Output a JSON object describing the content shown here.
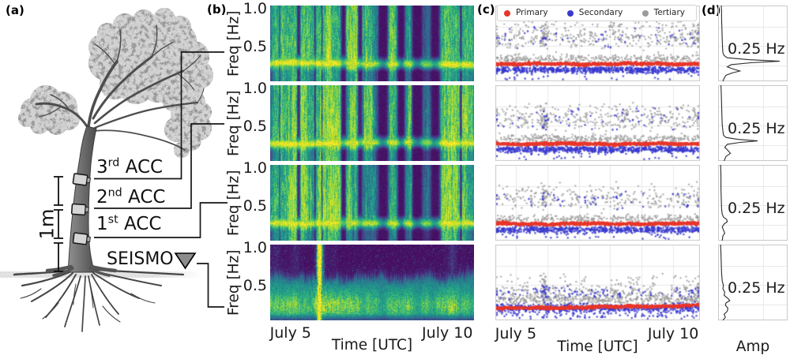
{
  "panel_labels": {
    "a": "(a)",
    "b": "(b)",
    "c": "(c)",
    "d": "(d)"
  },
  "panel_a": {
    "sensor_labels": [
      {
        "num": "3",
        "suffix": "rd",
        "rest": " ACC"
      },
      {
        "num": "2",
        "suffix": "nd",
        "rest": " ACC"
      },
      {
        "num": "1",
        "suffix": "st",
        "rest": " ACC"
      }
    ],
    "seismometer_label": "SEISMO",
    "scale_bar_label": "1m"
  },
  "chart_data": [
    {
      "id": "b",
      "type": "heatmap",
      "description": "Four spectrograms (viridis colormap), one per sensor, frequency vs time; persistent bright band at the tree sway frequency 0.25 Hz and daily broadband wind events",
      "rows": [
        "3rd ACC",
        "2nd ACC",
        "1st ACC",
        "SEISMO"
      ],
      "ylabel": "Freq [Hz]",
      "yticks": [
        {
          "f": 1.0,
          "label": "1.0"
        },
        {
          "f": 0.5,
          "label": "0.5"
        }
      ],
      "xlabel": "Time [UTC]",
      "xticks": [
        {
          "day": 5,
          "label": "July 5"
        },
        {
          "day": 10,
          "label": "July 10"
        }
      ],
      "x_range_days": [
        4.35,
        10.85
      ],
      "ylim_hz": [
        0.03,
        1.03
      ],
      "band_freq_hz": 0.25,
      "colormap": "viridis",
      "events": [
        {
          "day": 4.75,
          "width": 0.38,
          "strength": 1.0
        },
        {
          "day": 5.5,
          "width": 0.3,
          "strength": 0.9
        },
        {
          "day": 5.9,
          "width": 0.05,
          "strength": 1.45
        },
        {
          "day": 6.28,
          "width": 0.3,
          "strength": 1.05
        },
        {
          "day": 6.95,
          "width": 0.18,
          "strength": 0.85
        },
        {
          "day": 7.5,
          "width": 0.26,
          "strength": 0.82
        },
        {
          "day": 8.25,
          "width": 0.16,
          "strength": 0.92
        },
        {
          "day": 8.75,
          "width": 0.13,
          "strength": 0.82
        },
        {
          "day": 9.33,
          "width": 0.15,
          "strength": 0.6
        },
        {
          "day": 10.06,
          "width": 0.3,
          "strength": 1.05
        },
        {
          "day": 10.67,
          "width": 0.19,
          "strength": 0.9
        }
      ],
      "row_seeds": [
        101,
        202,
        303,
        404
      ],
      "row_gains": [
        1.0,
        1.0,
        0.95,
        1.0
      ],
      "gaps": [
        {
          "day": 5.245,
          "width": 0.05,
          "depth": 0.9
        },
        {
          "day": 5.77,
          "width": 0.015,
          "depth": 0.95
        },
        {
          "day": 5.99,
          "width": 0.015,
          "depth": 0.95
        },
        {
          "day": 4.64,
          "width": 0.012,
          "depth": 0.9
        },
        {
          "day": 6.68,
          "width": 0.07,
          "depth": 0.95
        },
        {
          "day": 7.2,
          "width": 0.06,
          "depth": 0.92
        },
        {
          "day": 7.94,
          "width": 0.14,
          "depth": 0.96
        },
        {
          "day": 8.51,
          "width": 0.1,
          "depth": 0.93
        },
        {
          "day": 9.02,
          "width": 0.14,
          "depth": 0.95
        },
        {
          "day": 9.615,
          "width": 0.12,
          "depth": 0.97
        },
        {
          "day": 10.42,
          "width": 0.03,
          "depth": 0.88
        }
      ]
    },
    {
      "id": "c",
      "type": "scatter",
      "description": "Detected spectral peak frequencies over time for each sensor",
      "legend": [
        {
          "label": "Primary",
          "color": "#e8362a"
        },
        {
          "label": "Secondary",
          "color": "#3939cf"
        },
        {
          "label": "Tertiary",
          "color": "#9b9b9b"
        }
      ],
      "xlabel": "Time [UTC]",
      "xticks": [
        {
          "day": 5,
          "label": "July 5"
        },
        {
          "day": 10,
          "label": "July 10"
        }
      ],
      "x_range_days": [
        4.35,
        10.85
      ],
      "grid_freqs_hz": [
        0.25,
        0.5,
        0.75
      ],
      "rows": [
        {
          "sensor": "3rd ACC",
          "seed": 11,
          "red": {
            "n": 900,
            "bands": [
              {
                "w": 1.0,
                "f": 0.268,
                "sig": 0.008,
                "x": "u"
              }
            ],
            "slope": 0.0
          },
          "blue": {
            "n": 850,
            "bands": [
              {
                "w": 0.85,
                "f": 0.19,
                "sig": 0.022,
                "x": "u"
              },
              {
                "w": 0.08,
                "f": 0.05,
                "sig": 0.035,
                "x": "u"
              },
              {
                "w": 0.07,
                "fmin": 0.44,
                "fmax": 0.78,
                "x": "e"
              }
            ]
          },
          "gray": {
            "n": 780,
            "bands": [
              {
                "w": 0.45,
                "f": 0.335,
                "sig": 0.028,
                "x": "u"
              },
              {
                "w": 0.49,
                "fmin": 0.44,
                "fmax": 0.8,
                "x": "e"
              },
              {
                "w": 0.06,
                "fmin": 0.7,
                "fmax": 0.85,
                "x": "e"
              }
            ]
          }
        },
        {
          "sensor": "2nd ACC",
          "seed": 22,
          "red": {
            "n": 900,
            "bands": [
              {
                "w": 1.0,
                "f": 0.265,
                "sig": 0.008,
                "x": "u"
              }
            ],
            "slope": 0.0
          },
          "blue": {
            "n": 850,
            "bands": [
              {
                "w": 0.83,
                "f": 0.19,
                "sig": 0.022,
                "x": "u"
              },
              {
                "w": 0.1,
                "f": 0.05,
                "sig": 0.035,
                "x": "u"
              },
              {
                "w": 0.07,
                "fmin": 0.42,
                "fmax": 0.76,
                "x": "e"
              }
            ]
          },
          "gray": {
            "n": 750,
            "bands": [
              {
                "w": 0.46,
                "f": 0.33,
                "sig": 0.027,
                "x": "u"
              },
              {
                "w": 0.48,
                "fmin": 0.42,
                "fmax": 0.76,
                "x": "e"
              },
              {
                "w": 0.06,
                "fmin": 0.68,
                "fmax": 0.82,
                "x": "e"
              }
            ]
          }
        },
        {
          "sensor": "1st ACC",
          "seed": 33,
          "red": {
            "n": 900,
            "bands": [
              {
                "w": 1.0,
                "f": 0.262,
                "sig": 0.008,
                "x": "u"
              }
            ],
            "slope": 0.0
          },
          "blue": {
            "n": 800,
            "bands": [
              {
                "w": 0.85,
                "f": 0.185,
                "sig": 0.023,
                "x": "u"
              },
              {
                "w": 0.08,
                "f": 0.05,
                "sig": 0.035,
                "x": "u"
              },
              {
                "w": 0.07,
                "fmin": 0.42,
                "fmax": 0.72,
                "x": "e"
              }
            ]
          },
          "gray": {
            "n": 620,
            "bands": [
              {
                "w": 0.47,
                "f": 0.325,
                "sig": 0.027,
                "x": "u"
              },
              {
                "w": 0.47,
                "fmin": 0.42,
                "fmax": 0.74,
                "x": "e"
              },
              {
                "w": 0.06,
                "fmin": 0.66,
                "fmax": 0.82,
                "x": "e"
              }
            ]
          }
        },
        {
          "sensor": "SEISMO",
          "seed": 44,
          "red": {
            "n": 900,
            "bands": [
              {
                "w": 1.0,
                "f": 0.215,
                "sig": 0.008,
                "x": "u"
              }
            ],
            "slope": 0.02
          },
          "blue": {
            "n": 850,
            "bands": [
              {
                "w": 0.7,
                "f": 0.2,
                "sig": 0.03,
                "x": "u"
              },
              {
                "w": 0.18,
                "f": 0.1,
                "sig": 0.045,
                "x": "u"
              },
              {
                "w": 0.12,
                "fmin": 0.3,
                "fmax": 0.5,
                "x": "e"
              }
            ]
          },
          "gray": {
            "n": 750,
            "bands": [
              {
                "w": 0.6,
                "f": 0.315,
                "sig": 0.035,
                "x": "u"
              },
              {
                "w": 0.3,
                "fmin": 0.34,
                "fmax": 0.52,
                "x": "e"
              },
              {
                "w": 0.1,
                "fmin": 0.48,
                "fmax": 0.68,
                "x": "e"
              }
            ]
          }
        }
      ]
    },
    {
      "id": "d",
      "type": "line",
      "description": "Mean amplitude spectra (amplitude vs frequency, frequency on vertical axis); peak at 0.25 Hz",
      "annotation": "0.25 Hz",
      "xlabel": "Amp",
      "grid_freqs_hz": [
        0.25,
        0.5,
        0.75
      ],
      "curves": [
        [
          [
            0,
            2.5
          ],
          [
            8,
            3
          ],
          [
            18,
            3
          ],
          [
            30,
            3.5
          ],
          [
            45,
            4
          ],
          [
            55,
            4.5
          ],
          [
            62,
            5
          ],
          [
            66,
            7
          ],
          [
            69,
            12
          ],
          [
            71.5,
            45
          ],
          [
            73.5,
            95
          ],
          [
            75.5,
            50
          ],
          [
            78,
            18
          ],
          [
            81,
            12
          ],
          [
            84,
            22
          ],
          [
            86.5,
            32
          ],
          [
            89,
            20
          ],
          [
            92,
            10
          ],
          [
            96,
            7
          ],
          [
            100,
            5
          ]
        ],
        [
          [
            0,
            2
          ],
          [
            10,
            2.5
          ],
          [
            25,
            3
          ],
          [
            40,
            3.5
          ],
          [
            52,
            4
          ],
          [
            60,
            5
          ],
          [
            66,
            6
          ],
          [
            69,
            10
          ],
          [
            71.5,
            28
          ],
          [
            73.5,
            60
          ],
          [
            75.5,
            32
          ],
          [
            78,
            12
          ],
          [
            82,
            8
          ],
          [
            86,
            13
          ],
          [
            90,
            17
          ],
          [
            94,
            10
          ],
          [
            100,
            7
          ]
        ],
        [
          [
            0,
            1.5
          ],
          [
            15,
            2
          ],
          [
            30,
            2
          ],
          [
            45,
            2.5
          ],
          [
            58,
            3
          ],
          [
            65,
            4
          ],
          [
            69,
            6
          ],
          [
            72,
            11
          ],
          [
            75,
            12
          ],
          [
            78,
            7
          ],
          [
            82,
            4
          ],
          [
            86,
            6
          ],
          [
            90,
            8
          ],
          [
            94,
            5
          ],
          [
            100,
            4
          ]
        ],
        [
          [
            0,
            1.5
          ],
          [
            12,
            2
          ],
          [
            25,
            2.5
          ],
          [
            38,
            3
          ],
          [
            48,
            4
          ],
          [
            54,
            6
          ],
          [
            58,
            5
          ],
          [
            63,
            8
          ],
          [
            67,
            7
          ],
          [
            71,
            13
          ],
          [
            74,
            16
          ],
          [
            77,
            10
          ],
          [
            80,
            9
          ],
          [
            84,
            13
          ],
          [
            88,
            12
          ],
          [
            92,
            7
          ],
          [
            96,
            9
          ],
          [
            100,
            5
          ]
        ]
      ]
    }
  ],
  "style": {
    "viridis": [
      [
        68,
        1,
        84
      ],
      [
        72,
        36,
        117
      ],
      [
        65,
        68,
        135
      ],
      [
        53,
        95,
        141
      ],
      [
        42,
        120,
        142
      ],
      [
        33,
        145,
        140
      ],
      [
        34,
        168,
        132
      ],
      [
        68,
        190,
        112
      ],
      [
        122,
        209,
        81
      ],
      [
        189,
        223,
        38
      ],
      [
        253,
        231,
        37
      ]
    ],
    "plot_border": "#c9c9c9",
    "grid_color": "#e9e9e9"
  }
}
